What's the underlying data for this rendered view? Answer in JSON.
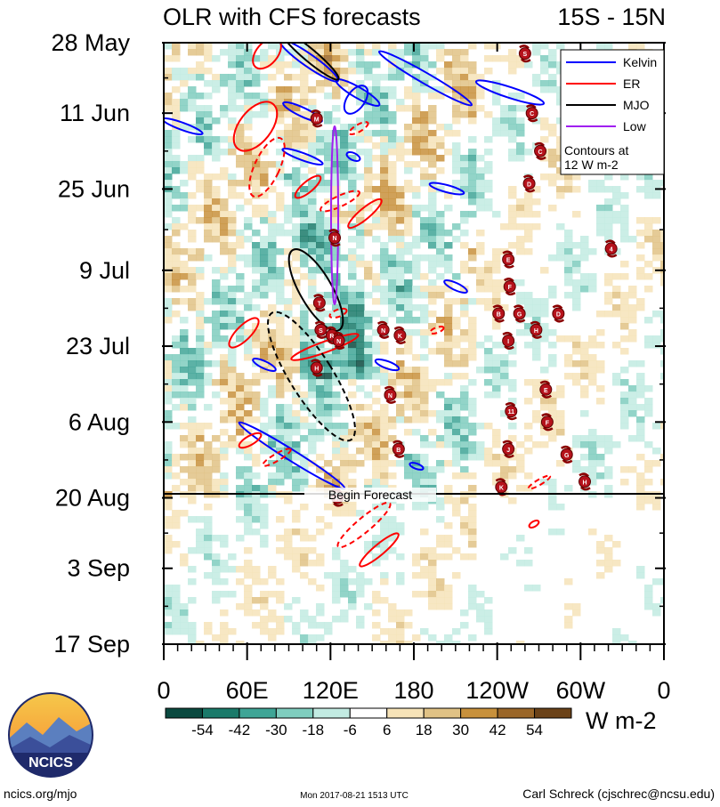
{
  "chart_data": {
    "type": "heatmap",
    "title": "OLR with CFS forecasts",
    "subtitle": "15S - 15N",
    "x_ticks": [
      "0",
      "60E",
      "120E",
      "180",
      "120W",
      "60W",
      "0"
    ],
    "y_ticks": [
      "28 May",
      "11 Jun",
      "25 Jun",
      "9 Jul",
      "23 Jul",
      "6 Aug",
      "20 Aug",
      "3 Sep",
      "17 Sep"
    ],
    "forecast_label": "Begin Forecast",
    "legend": [
      {
        "name": "Kelvin",
        "color": "#0000ff"
      },
      {
        "name": "ER",
        "color": "#ff0000"
      },
      {
        "name": "MJO",
        "color": "#000000"
      },
      {
        "name": "Low",
        "color": "#a020f0"
      }
    ],
    "contour_note": [
      "Contours at",
      "12 W m-2"
    ],
    "colorbar": {
      "colors": [
        "#0a4a40",
        "#1a7a6a",
        "#3fa596",
        "#7fcdbe",
        "#c2ebe2",
        "#ffffff",
        "#f6e3b8",
        "#e0c285",
        "#c8913c",
        "#9a6628",
        "#6b4218"
      ],
      "labels": [
        "-54",
        "-42",
        "-30",
        "-18",
        "-6",
        "6",
        "18",
        "30",
        "42",
        "54"
      ],
      "unit": "W m-2"
    },
    "storms": [
      {
        "lon": 110,
        "date": "12 Jun",
        "letter": "M"
      },
      {
        "lon": 123,
        "date": "3 Jul",
        "letter": "N"
      },
      {
        "lon": 112,
        "date": "15 Jul",
        "letter": "T"
      },
      {
        "lon": 113,
        "date": "20 Jul",
        "letter": "S"
      },
      {
        "lon": 121,
        "date": "21 Jul",
        "letter": "R"
      },
      {
        "lon": 126,
        "date": "22 Jul",
        "letter": "N"
      },
      {
        "lon": 110,
        "date": "27 Jul",
        "letter": "H"
      },
      {
        "lon": 158,
        "date": "20 Jul",
        "letter": "N"
      },
      {
        "lon": 170,
        "date": "21 Jul",
        "letter": "K"
      },
      {
        "lon": 163,
        "date": "1 Aug",
        "letter": "N"
      },
      {
        "lon": 169,
        "date": "11 Aug",
        "letter": "B"
      },
      {
        "lon": 125,
        "date": "20 Aug",
        "letter": "H"
      },
      {
        "lon": 260,
        "date": "30 May",
        "letter": "S"
      },
      {
        "lon": 265,
        "date": "11 Jun",
        "letter": "C"
      },
      {
        "lon": 271,
        "date": "18 Jun",
        "letter": "C"
      },
      {
        "lon": 263,
        "date": "24 Jun",
        "letter": "D"
      },
      {
        "lon": 248,
        "date": "7 Jul",
        "letter": "E"
      },
      {
        "lon": 249,
        "date": "12 Jul",
        "letter": "F"
      },
      {
        "lon": 241,
        "date": "17 Jul",
        "letter": "B"
      },
      {
        "lon": 256,
        "date": "17 Jul",
        "letter": "G"
      },
      {
        "lon": 284,
        "date": "17 Jul",
        "letter": "D"
      },
      {
        "lon": 248,
        "date": "22 Jul",
        "letter": "I"
      },
      {
        "lon": 268,
        "date": "20 Jul",
        "letter": "H"
      },
      {
        "lon": 322,
        "date": "5 Jul",
        "letter": "4"
      },
      {
        "lon": 275,
        "date": "31 Jul",
        "letter": "E"
      },
      {
        "lon": 250,
        "date": "4 Aug",
        "letter": "11"
      },
      {
        "lon": 276,
        "date": "6 Aug",
        "letter": "F"
      },
      {
        "lon": 248,
        "date": "11 Aug",
        "letter": "J"
      },
      {
        "lon": 290,
        "date": "12 Aug",
        "letter": "G"
      },
      {
        "lon": 243,
        "date": "18 Aug",
        "letter": "K"
      },
      {
        "lon": 303,
        "date": "17 Aug",
        "letter": "H"
      }
    ]
  },
  "logo": {
    "text": "NCICS"
  },
  "footer": {
    "left": "ncics.org/mjo",
    "center": "Mon 2017-08-21 1513 UTC",
    "right": "Carl Schreck (cjschrec@ncsu.edu)"
  }
}
